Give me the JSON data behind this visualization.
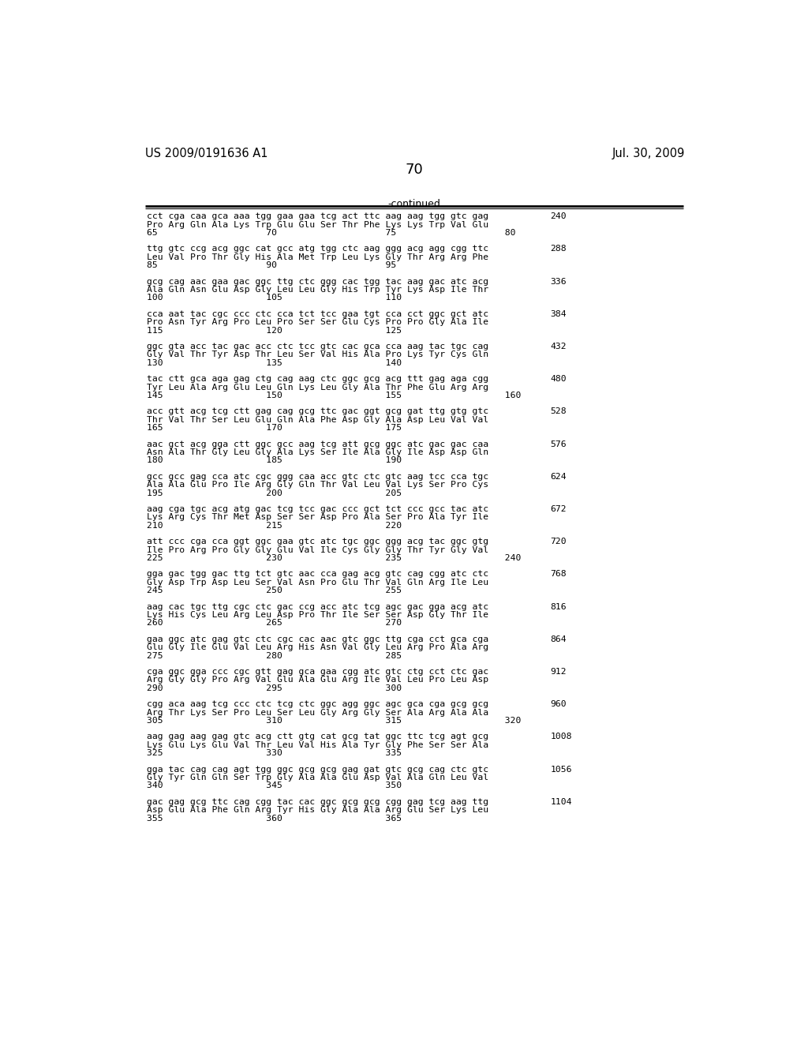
{
  "header_left": "US 2009/0191636 A1",
  "header_right": "Jul. 30, 2009",
  "page_number": "70",
  "continued_label": "-continued",
  "background_color": "#ffffff",
  "text_color": "#000000",
  "font_size_header": 10.5,
  "font_size_body": 8.5,
  "font_size_page": 13,
  "blocks": [
    {
      "nucleotide": "cct cga caa gca aaa tgg gaa gaa tcg act ttc aag aag tgg gtc gag",
      "amino": "Pro Arg Gln Ala Lys Trp Glu Glu Ser Thr Phe Lys Lys Trp Val Glu",
      "numbers": "65                    70                    75                    80",
      "right_num": "240"
    },
    {
      "nucleotide": "ttg gtc ccg acg ggc cat gcc atg tgg ctc aag ggg acg agg cgg ttc",
      "amino": "Leu Val Pro Thr Gly His Ala Met Trp Leu Lys Gly Thr Arg Arg Phe",
      "numbers": "85                    90                    95",
      "right_num": "288"
    },
    {
      "nucleotide": "gcg cag aac gaa gac ggc ttg ctc ggg cac tgg tac aag gac atc acg",
      "amino": "Ala Gln Asn Glu Asp Gly Leu Leu Gly His Trp Tyr Lys Asp Ile Thr",
      "numbers": "100                   105                   110",
      "right_num": "336"
    },
    {
      "nucleotide": "cca aat tac cgc ccc ctc cca tct tcc gaa tgt cca cct ggc gct atc",
      "amino": "Pro Asn Tyr Arg Pro Leu Pro Ser Ser Glu Cys Pro Pro Gly Ala Ile",
      "numbers": "115                   120                   125",
      "right_num": "384"
    },
    {
      "nucleotide": "ggc gta acc tac gac acc ctc tcc gtc cac gca cca aag tac tgc cag",
      "amino": "Gly Val Thr Tyr Asp Thr Leu Ser Val His Ala Pro Lys Tyr Cys Gln",
      "numbers": "130                   135                   140",
      "right_num": "432"
    },
    {
      "nucleotide": "tac ctt gca aga gag ctg cag aag ctc ggc gcg acg ttt gag aga cgg",
      "amino": "Tyr Leu Ala Arg Glu Leu Gln Lys Leu Gly Ala Thr Phe Glu Arg Arg",
      "numbers": "145                   150                   155                   160",
      "right_num": "480"
    },
    {
      "nucleotide": "acc gtt acg tcg ctt gag cag gcg ttc gac ggt gcg gat ttg gtg gtc",
      "amino": "Thr Val Thr Ser Leu Glu Gln Ala Phe Asp Gly Ala Asp Leu Val Val",
      "numbers": "165                   170                   175",
      "right_num": "528"
    },
    {
      "nucleotide": "aac gct acg gga ctt ggc gcc aag tcg att gcg ggc atc gac gac caa",
      "amino": "Asn Ala Thr Gly Leu Gly Ala Lys Ser Ile Ala Gly Ile Asp Asp Gln",
      "numbers": "180                   185                   190",
      "right_num": "576"
    },
    {
      "nucleotide": "gcc gcc gag cca atc cgc ggg caa acc gtc ctc gtc aag tcc cca tgc",
      "amino": "Ala Ala Glu Pro Ile Arg Gly Gln Thr Val Leu Val Lys Ser Pro Cys",
      "numbers": "195                   200                   205",
      "right_num": "624"
    },
    {
      "nucleotide": "aag cga tgc acg atg gac tcg tcc gac ccc gct tct ccc gcc tac atc",
      "amino": "Lys Arg Cys Thr Met Asp Ser Ser Asp Pro Ala Ser Pro Ala Tyr Ile",
      "numbers": "210                   215                   220",
      "right_num": "672"
    },
    {
      "nucleotide": "att ccc cga cca ggt ggc gaa gtc atc tgc ggc ggg acg tac ggc gtg",
      "amino": "Ile Pro Arg Pro Gly Gly Glu Val Ile Cys Gly Gly Thr Tyr Gly Val",
      "numbers": "225                   230                   235                   240",
      "right_num": "720"
    },
    {
      "nucleotide": "gga gac tgg gac ttg tct gtc aac cca gag acg gtc cag cgg atc ctc",
      "amino": "Gly Asp Trp Asp Leu Ser Val Asn Pro Glu Thr Val Gln Arg Ile Leu",
      "numbers": "245                   250                   255",
      "right_num": "768"
    },
    {
      "nucleotide": "aag cac tgc ttg cgc ctc gac ccg acc atc tcg agc gac gga acg atc",
      "amino": "Lys His Cys Leu Arg Leu Asp Pro Thr Ile Ser Ser Asp Gly Thr Ile",
      "numbers": "260                   265                   270",
      "right_num": "816"
    },
    {
      "nucleotide": "gaa ggc atc gag gtc ctc cgc cac aac gtc ggc ttg cga cct gca cga",
      "amino": "Glu Gly Ile Glu Val Leu Arg His Asn Val Gly Leu Arg Pro Ala Arg",
      "numbers": "275                   280                   285",
      "right_num": "864"
    },
    {
      "nucleotide": "cga ggc gga ccc cgc gtt gag gca gaa cgg atc gtc ctg cct ctc gac",
      "amino": "Arg Gly Gly Pro Arg Val Glu Ala Glu Arg Ile Val Leu Pro Leu Asp",
      "numbers": "290                   295                   300",
      "right_num": "912"
    },
    {
      "nucleotide": "cgg aca aag tcg ccc ctc tcg ctc ggc agg ggc agc gca cga gcg gcg",
      "amino": "Arg Thr Lys Ser Pro Leu Ser Leu Gly Arg Gly Ser Ala Arg Ala Ala",
      "numbers": "305                   310                   315                   320",
      "right_num": "960"
    },
    {
      "nucleotide": "aag gag aag gag gtc acg ctt gtg cat gcg tat ggc ttc tcg agt gcg",
      "amino": "Lys Glu Lys Glu Val Thr Leu Val His Ala Tyr Gly Phe Ser Ser Ala",
      "numbers": "325                   330                   335",
      "right_num": "1008"
    },
    {
      "nucleotide": "gga tac cag cag agt tgg ggc gcg gcg gag gat gtc gcg cag ctc gtc",
      "amino": "Gly Tyr Gln Gln Ser Trp Gly Ala Ala Glu Asp Val Ala Gln Leu Val",
      "numbers": "340                   345                   350",
      "right_num": "1056"
    },
    {
      "nucleotide": "gac gag gcg ttc cag cgg tac cac ggc gcg gcg cgg gag tcg aag ttg",
      "amino": "Asp Glu Ala Phe Gln Arg Tyr His Gly Ala Ala Arg Glu Ser Lys Leu",
      "numbers": "355                   360                   365",
      "right_num": "1104"
    }
  ]
}
